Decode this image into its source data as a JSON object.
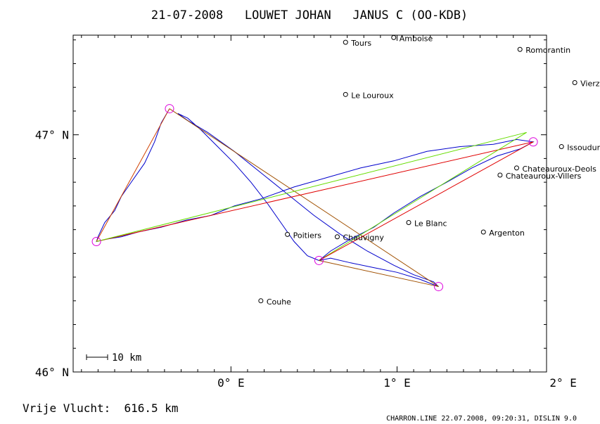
{
  "title": "21-07-2008   LOUWET JOHAN   JANUS C (OO-KDB)",
  "axes": {
    "lon_min": -0.95,
    "lon_max": 1.9,
    "lat_min": 46.0,
    "lat_max": 47.42,
    "x_ticks": [
      {
        "value": 0,
        "label": "0° E"
      },
      {
        "value": 1,
        "label": "1° E"
      },
      {
        "value": 2,
        "label": "2° E"
      }
    ],
    "y_ticks": [
      {
        "value": 46,
        "label": "46° N"
      },
      {
        "value": 47,
        "label": "47° N"
      }
    ]
  },
  "scale_bar": {
    "label": "10 km"
  },
  "cities": [
    {
      "name": "Amboise",
      "lon": 0.98,
      "lat": 47.41
    },
    {
      "name": "Romorantin",
      "lon": 1.74,
      "lat": 47.36
    },
    {
      "name": "Tours",
      "lon": 0.69,
      "lat": 47.39
    },
    {
      "name": "Vierzon",
      "lon": 2.07,
      "lat": 47.22
    },
    {
      "name": "Le Louroux",
      "lon": 0.69,
      "lat": 47.17
    },
    {
      "name": "Issoudun",
      "lon": 1.99,
      "lat": 46.95
    },
    {
      "name": "Chateauroux-Deols",
      "lon": 1.72,
      "lat": 46.86
    },
    {
      "name": "Chateauroux-Villers",
      "lon": 1.62,
      "lat": 46.83
    },
    {
      "name": "Le Blanc",
      "lon": 1.07,
      "lat": 46.63
    },
    {
      "name": "Argenton",
      "lon": 1.52,
      "lat": 46.59
    },
    {
      "name": "Poitiers",
      "lon": 0.34,
      "lat": 46.58
    },
    {
      "name": "Chauvigny",
      "lon": 0.64,
      "lat": 46.57
    },
    {
      "name": "Couhe",
      "lon": 0.18,
      "lat": 46.3
    }
  ],
  "turnpoints": [
    {
      "lon": -0.37,
      "lat": 47.11
    },
    {
      "lon": -0.81,
      "lat": 46.55
    },
    {
      "lon": 1.82,
      "lat": 46.97
    },
    {
      "lon": 0.53,
      "lat": 46.47
    },
    {
      "lon": 1.25,
      "lat": 46.36
    }
  ],
  "legs": [
    {
      "from": [
        -0.37,
        47.11
      ],
      "to": [
        -0.81,
        46.55
      ],
      "color": "#d04000"
    },
    {
      "from": [
        -0.37,
        47.11
      ],
      "to": [
        1.25,
        46.36
      ],
      "color": "#a05000"
    },
    {
      "from": [
        -0.81,
        46.55
      ],
      "to": [
        1.82,
        46.97
      ],
      "color": "#e00000"
    },
    {
      "from": [
        -0.81,
        46.55
      ],
      "to": [
        1.78,
        47.01
      ],
      "color": "#66dd00"
    },
    {
      "from": [
        0.53,
        46.47
      ],
      "to": [
        1.78,
        47.01
      ],
      "color": "#66dd00"
    },
    {
      "from": [
        0.53,
        46.47
      ],
      "to": [
        1.82,
        46.97
      ],
      "color": "#e00000"
    },
    {
      "from": [
        0.53,
        46.47
      ],
      "to": [
        1.25,
        46.36
      ],
      "color": "#a05000"
    }
  ],
  "track": [
    [
      -0.37,
      47.11
    ],
    [
      -0.42,
      47.05
    ],
    [
      -0.46,
      46.97
    ],
    [
      -0.52,
      46.88
    ],
    [
      -0.6,
      46.8
    ],
    [
      -0.66,
      46.74
    ],
    [
      -0.7,
      46.68
    ],
    [
      -0.76,
      46.63
    ],
    [
      -0.8,
      46.57
    ],
    [
      -0.81,
      46.55
    ],
    [
      -0.75,
      46.56
    ],
    [
      -0.66,
      46.57
    ],
    [
      -0.56,
      46.59
    ],
    [
      -0.42,
      46.61
    ],
    [
      -0.27,
      46.64
    ],
    [
      -0.12,
      46.66
    ],
    [
      0.02,
      46.7
    ],
    [
      0.18,
      46.73
    ],
    [
      0.38,
      46.78
    ],
    [
      0.58,
      46.82
    ],
    [
      0.78,
      46.86
    ],
    [
      0.98,
      46.89
    ],
    [
      1.18,
      46.93
    ],
    [
      1.38,
      46.95
    ],
    [
      1.58,
      46.96
    ],
    [
      1.72,
      46.98
    ],
    [
      1.82,
      46.97
    ],
    [
      1.74,
      46.94
    ],
    [
      1.6,
      46.91
    ],
    [
      1.45,
      46.86
    ],
    [
      1.3,
      46.8
    ],
    [
      1.14,
      46.74
    ],
    [
      0.98,
      46.67
    ],
    [
      0.86,
      46.61
    ],
    [
      0.72,
      46.56
    ],
    [
      0.6,
      46.51
    ],
    [
      0.53,
      46.47
    ],
    [
      0.46,
      46.49
    ],
    [
      0.38,
      46.55
    ],
    [
      0.3,
      46.63
    ],
    [
      0.22,
      46.71
    ],
    [
      0.12,
      46.8
    ],
    [
      0.02,
      46.88
    ],
    [
      -0.08,
      46.95
    ],
    [
      -0.18,
      47.02
    ],
    [
      -0.26,
      47.07
    ],
    [
      -0.32,
      47.09
    ],
    [
      -0.26,
      47.06
    ],
    [
      -0.14,
      47.01
    ],
    [
      0.02,
      46.93
    ],
    [
      0.18,
      46.84
    ],
    [
      0.34,
      46.75
    ],
    [
      0.5,
      46.66
    ],
    [
      0.66,
      46.58
    ],
    [
      0.82,
      46.51
    ],
    [
      0.98,
      46.45
    ],
    [
      1.1,
      46.41
    ],
    [
      1.22,
      46.38
    ],
    [
      1.25,
      46.36
    ],
    [
      1.14,
      46.39
    ],
    [
      1.0,
      46.42
    ],
    [
      0.86,
      46.44
    ],
    [
      0.72,
      46.46
    ],
    [
      0.6,
      46.48
    ],
    [
      0.53,
      46.47
    ]
  ],
  "footer": {
    "distance_label": "Vrije Vlucht:  616.5 km",
    "credit": "CHARRON.LINE 22.07.2008, 09:20:31, DISLIN 9.0"
  }
}
